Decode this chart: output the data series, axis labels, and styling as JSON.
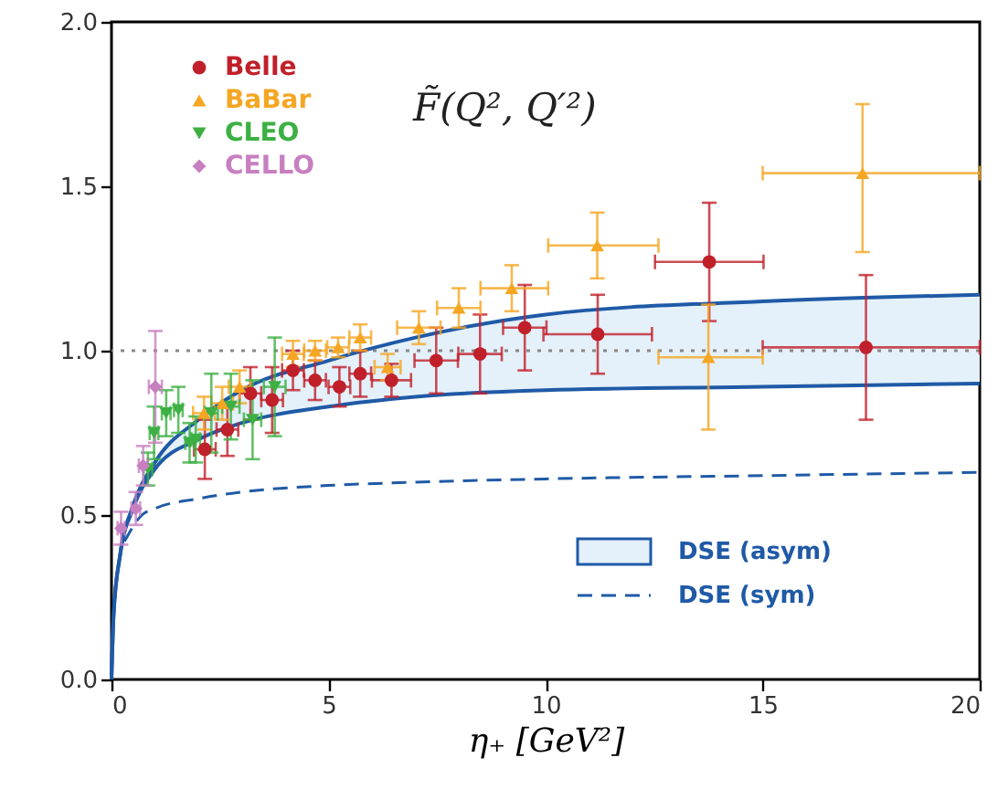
{
  "chart_data": {
    "type": "scatter",
    "xlabel": "η₊ [GeV²]",
    "annotations": [
      "F̃(Q², Q′²)"
    ],
    "xlim": [
      0,
      20
    ],
    "xticks": [
      0,
      5,
      10,
      15,
      20
    ],
    "ylim": [
      0,
      2
    ],
    "yticks": [
      {
        "value": 0,
        "label": "0.0"
      },
      {
        "value": 0.5,
        "label": "0.5"
      },
      {
        "value": 1,
        "label": "1.0"
      },
      {
        "value": 1.5,
        "label": "1.5"
      },
      {
        "value": 2,
        "label": "2.0"
      }
    ],
    "grid": false,
    "legend": "top left",
    "ref_lines": [
      {
        "axis": "y",
        "value": 1,
        "color": "#888888",
        "line_style": "dotted"
      }
    ],
    "series": [
      {
        "name": "DSE (asym)",
        "type": "line",
        "color": "#1f5aa6",
        "x": [
          0,
          0.05,
          0.2,
          0.5,
          1,
          2,
          3,
          5,
          7,
          10,
          15,
          20
        ],
        "values": [
          0,
          0.2,
          0.38,
          0.53,
          0.66,
          0.79,
          0.88,
          0.97,
          1.04,
          1.11,
          1.15,
          1.17
        ],
        "upper": [
          0,
          0.2,
          0.38,
          0.53,
          0.66,
          0.79,
          0.88,
          0.97,
          1.04,
          1.11,
          1.15,
          1.17
        ],
        "lower": [
          0,
          0.2,
          0.38,
          0.52,
          0.64,
          0.73,
          0.78,
          0.83,
          0.86,
          0.88,
          0.89,
          0.9
        ]
      },
      {
        "type": "line",
        "color": "#1f5aa6",
        "x": [
          0,
          0.05,
          0.2,
          0.5,
          1,
          2,
          3,
          5,
          7,
          10,
          15,
          20
        ],
        "values": [
          0,
          0.2,
          0.38,
          0.52,
          0.64,
          0.73,
          0.78,
          0.83,
          0.86,
          0.88,
          0.89,
          0.9
        ]
      },
      {
        "name": "DSE (sym)",
        "type": "line",
        "line_style": "dashed",
        "color": "#1f5aa6",
        "x": [
          0.3,
          0.7,
          1,
          2,
          3,
          5,
          7,
          10,
          15,
          20
        ],
        "values": [
          0.42,
          0.5,
          0.52,
          0.55,
          0.57,
          0.59,
          0.6,
          0.61,
          0.62,
          0.63
        ]
      },
      {
        "name": "Belle",
        "marker": "circle",
        "color": "#c0202a",
        "x": [
          2.15,
          2.67,
          3.2,
          3.7,
          4.18,
          4.69,
          5.25,
          5.73,
          6.45,
          7.48,
          8.49,
          9.52,
          11.2,
          13.77,
          17.38
        ],
        "values": [
          0.7,
          0.76,
          0.87,
          0.85,
          0.94,
          0.91,
          0.89,
          0.93,
          0.91,
          0.97,
          0.99,
          1.07,
          1.05,
          1.27,
          1.01
        ],
        "errors": [
          0.09,
          0.08,
          0.08,
          0.1,
          0.06,
          0.06,
          0.06,
          0.07,
          0.05,
          0.1,
          0.12,
          0.13,
          0.12,
          0.18,
          0.22
        ],
        "xerrors": [
          0.25,
          0.25,
          0.25,
          0.25,
          0.25,
          0.25,
          0.25,
          0.25,
          0.45,
          0.5,
          0.5,
          0.5,
          1.25,
          1.25,
          [
            15,
            20
          ]
        ]
      },
      {
        "name": "BaBar",
        "marker": "triangle",
        "color": "#f5a623",
        "x": [
          2.13,
          2.55,
          2.95,
          4.18,
          4.69,
          5.22,
          5.73,
          6.36,
          7.08,
          8.0,
          9.22,
          11.19,
          13.75,
          17.3
        ],
        "values": [
          0.81,
          0.84,
          0.89,
          0.99,
          1.0,
          1.01,
          1.04,
          0.95,
          1.07,
          1.13,
          1.19,
          1.32,
          0.98,
          1.54
        ],
        "errors": [
          0.05,
          0.05,
          0.05,
          0.04,
          0.03,
          0.03,
          0.04,
          0.04,
          0.05,
          0.06,
          0.07,
          0.1,
          [
            0.76,
            1.14
          ],
          [
            1.3,
            1.75
          ]
        ],
        "xerrors": [
          0.25,
          0.25,
          0.25,
          0.25,
          0.25,
          0.25,
          0.25,
          0.3,
          0.5,
          0.5,
          [
            8.5,
            10.06
          ],
          [
            10.06,
            12.6
          ],
          [
            12.6,
            15
          ],
          [
            15,
            20
          ]
        ]
      },
      {
        "name": "CLEO",
        "marker": "triangle-down",
        "color": "#3cb043",
        "x": [
          0.84,
          0.98,
          1.26,
          1.54,
          1.8,
          1.94,
          2.3,
          2.75,
          3.25,
          3.76
        ],
        "values": [
          0.64,
          0.75,
          0.81,
          0.82,
          0.72,
          0.73,
          0.81,
          0.83,
          0.79,
          0.89
        ],
        "errors": [
          0.05,
          0.08,
          0.07,
          0.07,
          0.06,
          0.07,
          0.12,
          0.1,
          0.12,
          0.15
        ],
        "xerrors": [
          0.1,
          0.1,
          0.1,
          0.1,
          0.1,
          0.1,
          0.15,
          0.2,
          0.2,
          0.25
        ]
      },
      {
        "name": "CELLO",
        "marker": "diamond",
        "color": "#c77fc0",
        "x": [
          0.22,
          0.56,
          0.73,
          1.01
        ],
        "values": [
          0.46,
          0.52,
          0.65,
          0.89
        ],
        "errors": [
          0.05,
          0.05,
          0.06,
          0.17
        ],
        "xerrors": [
          0.08,
          0.1,
          0.1,
          0.15
        ]
      }
    ]
  }
}
